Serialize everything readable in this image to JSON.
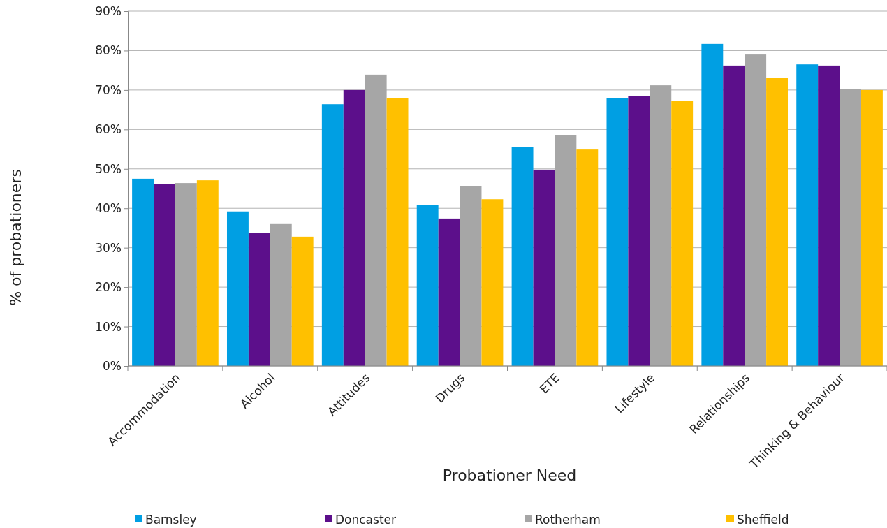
{
  "chart_data": {
    "type": "bar",
    "xlabel": "Probationer Need",
    "ylabel": "% of probationers",
    "categories": [
      "Accommodation",
      "Alcohol",
      "Attitudes",
      "Drugs",
      "ETE",
      "Lifestyle",
      "Relationships",
      "Thinking & Behaviour"
    ],
    "series": [
      {
        "name": "Barnsley",
        "color": "#009fe3",
        "values": [
          47.5,
          39.2,
          66.4,
          40.8,
          55.6,
          67.9,
          81.7,
          76.5
        ]
      },
      {
        "name": "Doncaster",
        "color": "#5c0f8b",
        "values": [
          46.2,
          33.8,
          70.0,
          37.4,
          49.8,
          68.4,
          76.2,
          76.2
        ]
      },
      {
        "name": "Rotherham",
        "color": "#a6a6a6",
        "values": [
          46.4,
          36.0,
          73.9,
          45.7,
          58.6,
          71.2,
          79.0,
          70.2
        ]
      },
      {
        "name": "Sheffield",
        "color": "#ffc000",
        "values": [
          47.1,
          32.8,
          67.9,
          42.3,
          54.9,
          67.2,
          73.0,
          70.0
        ]
      }
    ],
    "ylim": [
      0,
      90
    ],
    "yticks": [
      {
        "value": 0,
        "label": "0%"
      },
      {
        "value": 10,
        "label": "10%"
      },
      {
        "value": 20,
        "label": "20%"
      },
      {
        "value": 30,
        "label": "30%"
      },
      {
        "value": 40,
        "label": "40%"
      },
      {
        "value": 50,
        "label": "50%"
      },
      {
        "value": 60,
        "label": "60%"
      },
      {
        "value": 70,
        "label": "70%"
      },
      {
        "value": 80,
        "label": "80%"
      },
      {
        "value": 90,
        "label": "90%"
      }
    ],
    "grid": "y",
    "legend": "bottom"
  }
}
